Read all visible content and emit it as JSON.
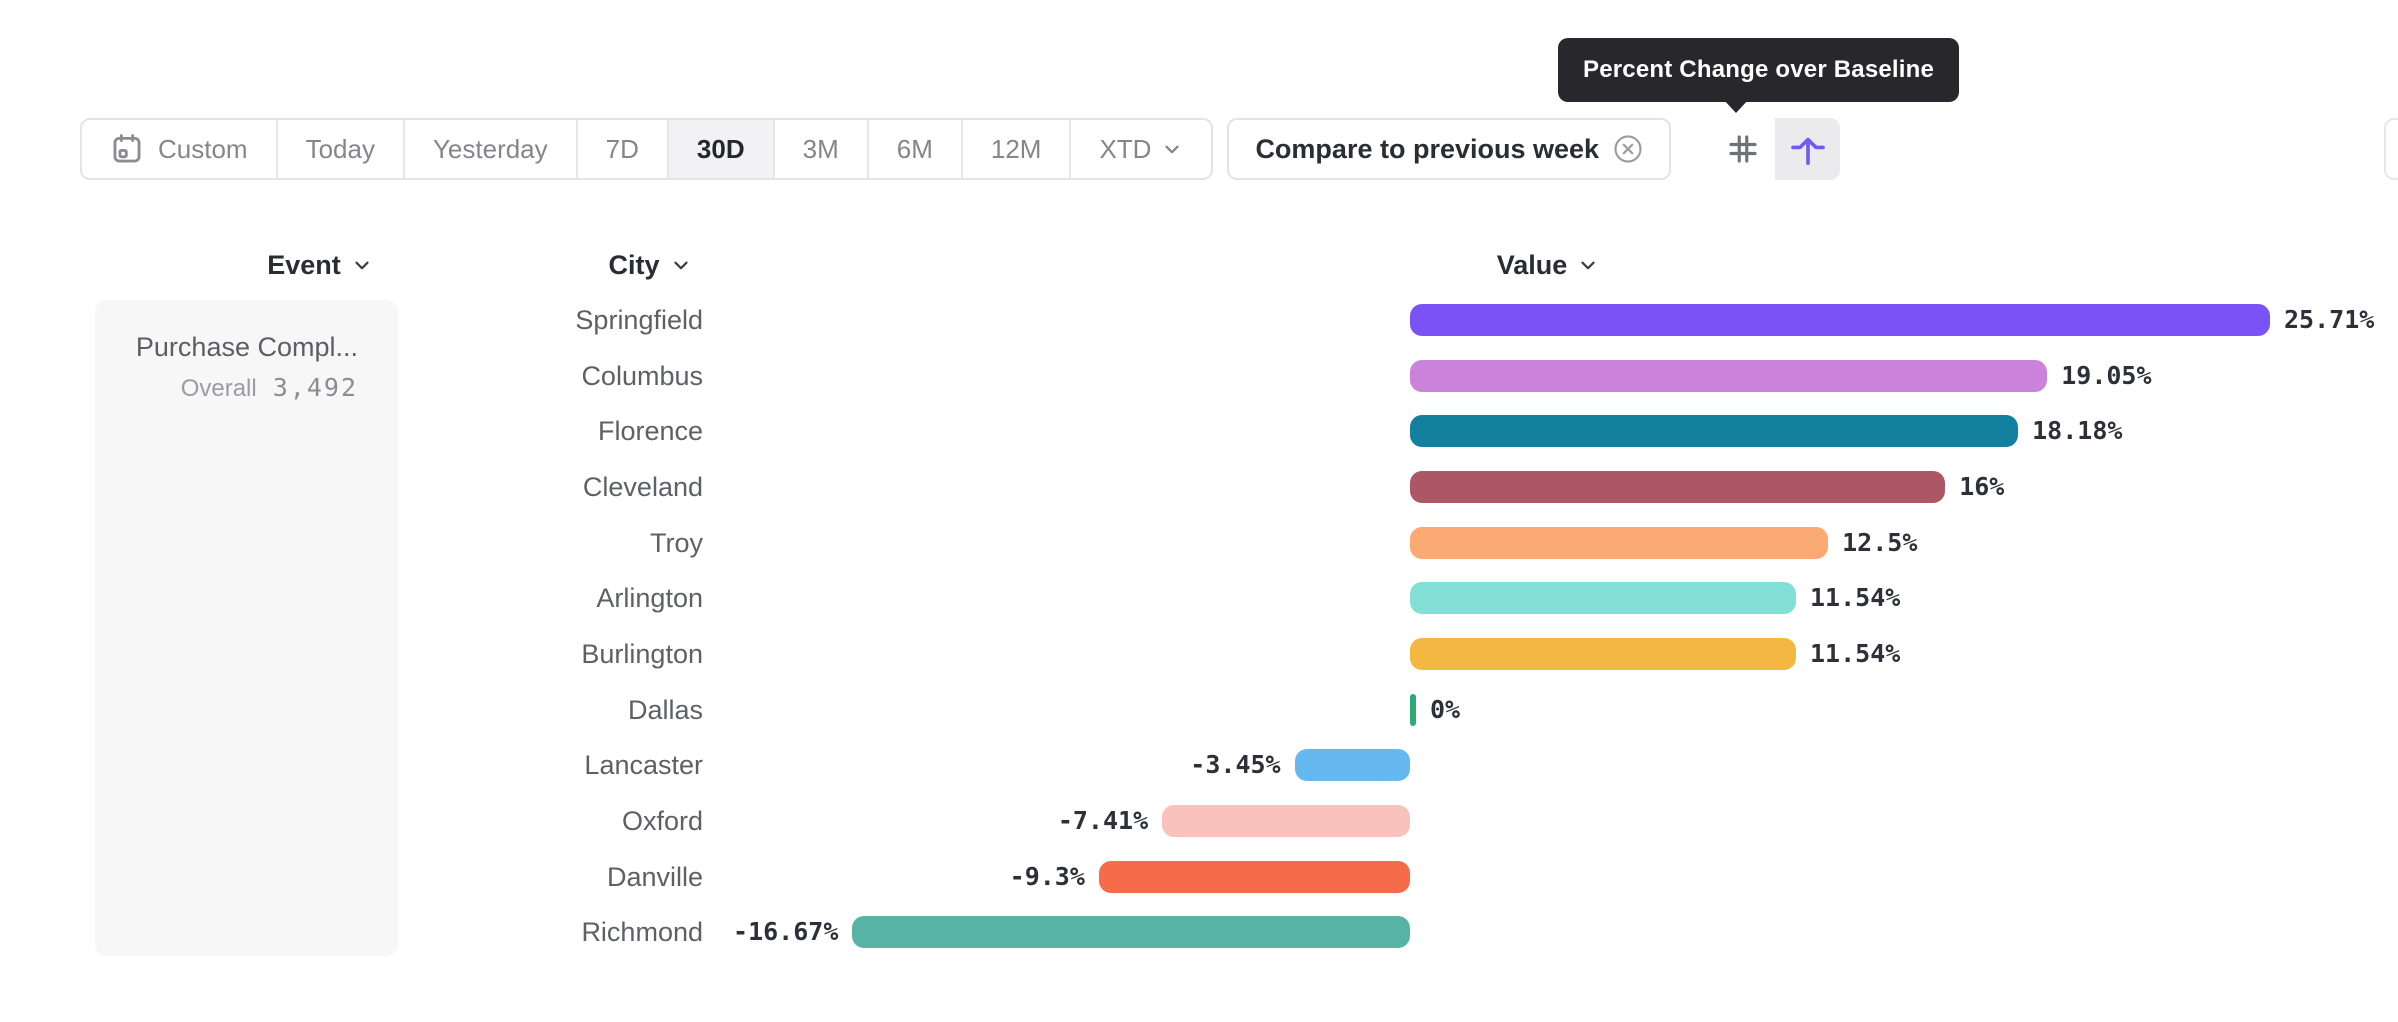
{
  "toolbar": {
    "date_ranges": [
      {
        "label": "Custom",
        "icon": "calendar-icon",
        "active": false
      },
      {
        "label": "Today",
        "active": false
      },
      {
        "label": "Yesterday",
        "active": false
      },
      {
        "label": "7D",
        "active": false
      },
      {
        "label": "30D",
        "active": true
      },
      {
        "label": "3M",
        "active": false
      },
      {
        "label": "6M",
        "active": false
      },
      {
        "label": "12M",
        "active": false
      },
      {
        "label": "XTD",
        "active": false,
        "chevron": true
      }
    ],
    "compare_chip": {
      "label": "Compare to previous week",
      "close_icon": "circle-x-icon"
    },
    "view_toggle": [
      {
        "icon": "grid-hash-icon",
        "selected": false
      },
      {
        "icon": "baseline-arrow-icon",
        "selected": true
      }
    ]
  },
  "tooltip": {
    "text": "Percent Change over Baseline"
  },
  "columns": {
    "event": "Event",
    "city": "City",
    "value": "Value"
  },
  "event_panel": {
    "title": "Purchase Compl...",
    "overall_label": "Overall",
    "overall_value": "3,492"
  },
  "chart_data": {
    "type": "bar",
    "orientation": "horizontal",
    "title": "Percent Change over Baseline",
    "unit": "%",
    "baseline": 0,
    "categories": [
      "Springfield",
      "Columbus",
      "Florence",
      "Cleveland",
      "Troy",
      "Arlington",
      "Burlington",
      "Dallas",
      "Lancaster",
      "Oxford",
      "Danville",
      "Richmond"
    ],
    "values": [
      25.71,
      19.05,
      18.18,
      16,
      12.5,
      11.54,
      11.54,
      0,
      -3.45,
      -7.41,
      -9.3,
      -16.67
    ],
    "labels": [
      "25.71%",
      "19.05%",
      "18.18%",
      "16%",
      "12.5%",
      "11.54%",
      "11.54%",
      "0%",
      "-3.45%",
      "-7.41%",
      "-9.3%",
      "-16.67%"
    ],
    "colors": [
      "#7a52f5",
      "#cb82db",
      "#13809f",
      "#ad5666",
      "#fbaa74",
      "#81dfd5",
      "#f4b842",
      "#2ea974",
      "#66b8f0",
      "#f9c2bc",
      "#f66c4b",
      "#57b4a5"
    ]
  },
  "theme": {
    "accent_purple": "#6f5bee",
    "tooltip_bg": "#27272c",
    "border": "#e4e4e6",
    "text_dark": "#2a2c31",
    "text_grey": "#85868b"
  }
}
